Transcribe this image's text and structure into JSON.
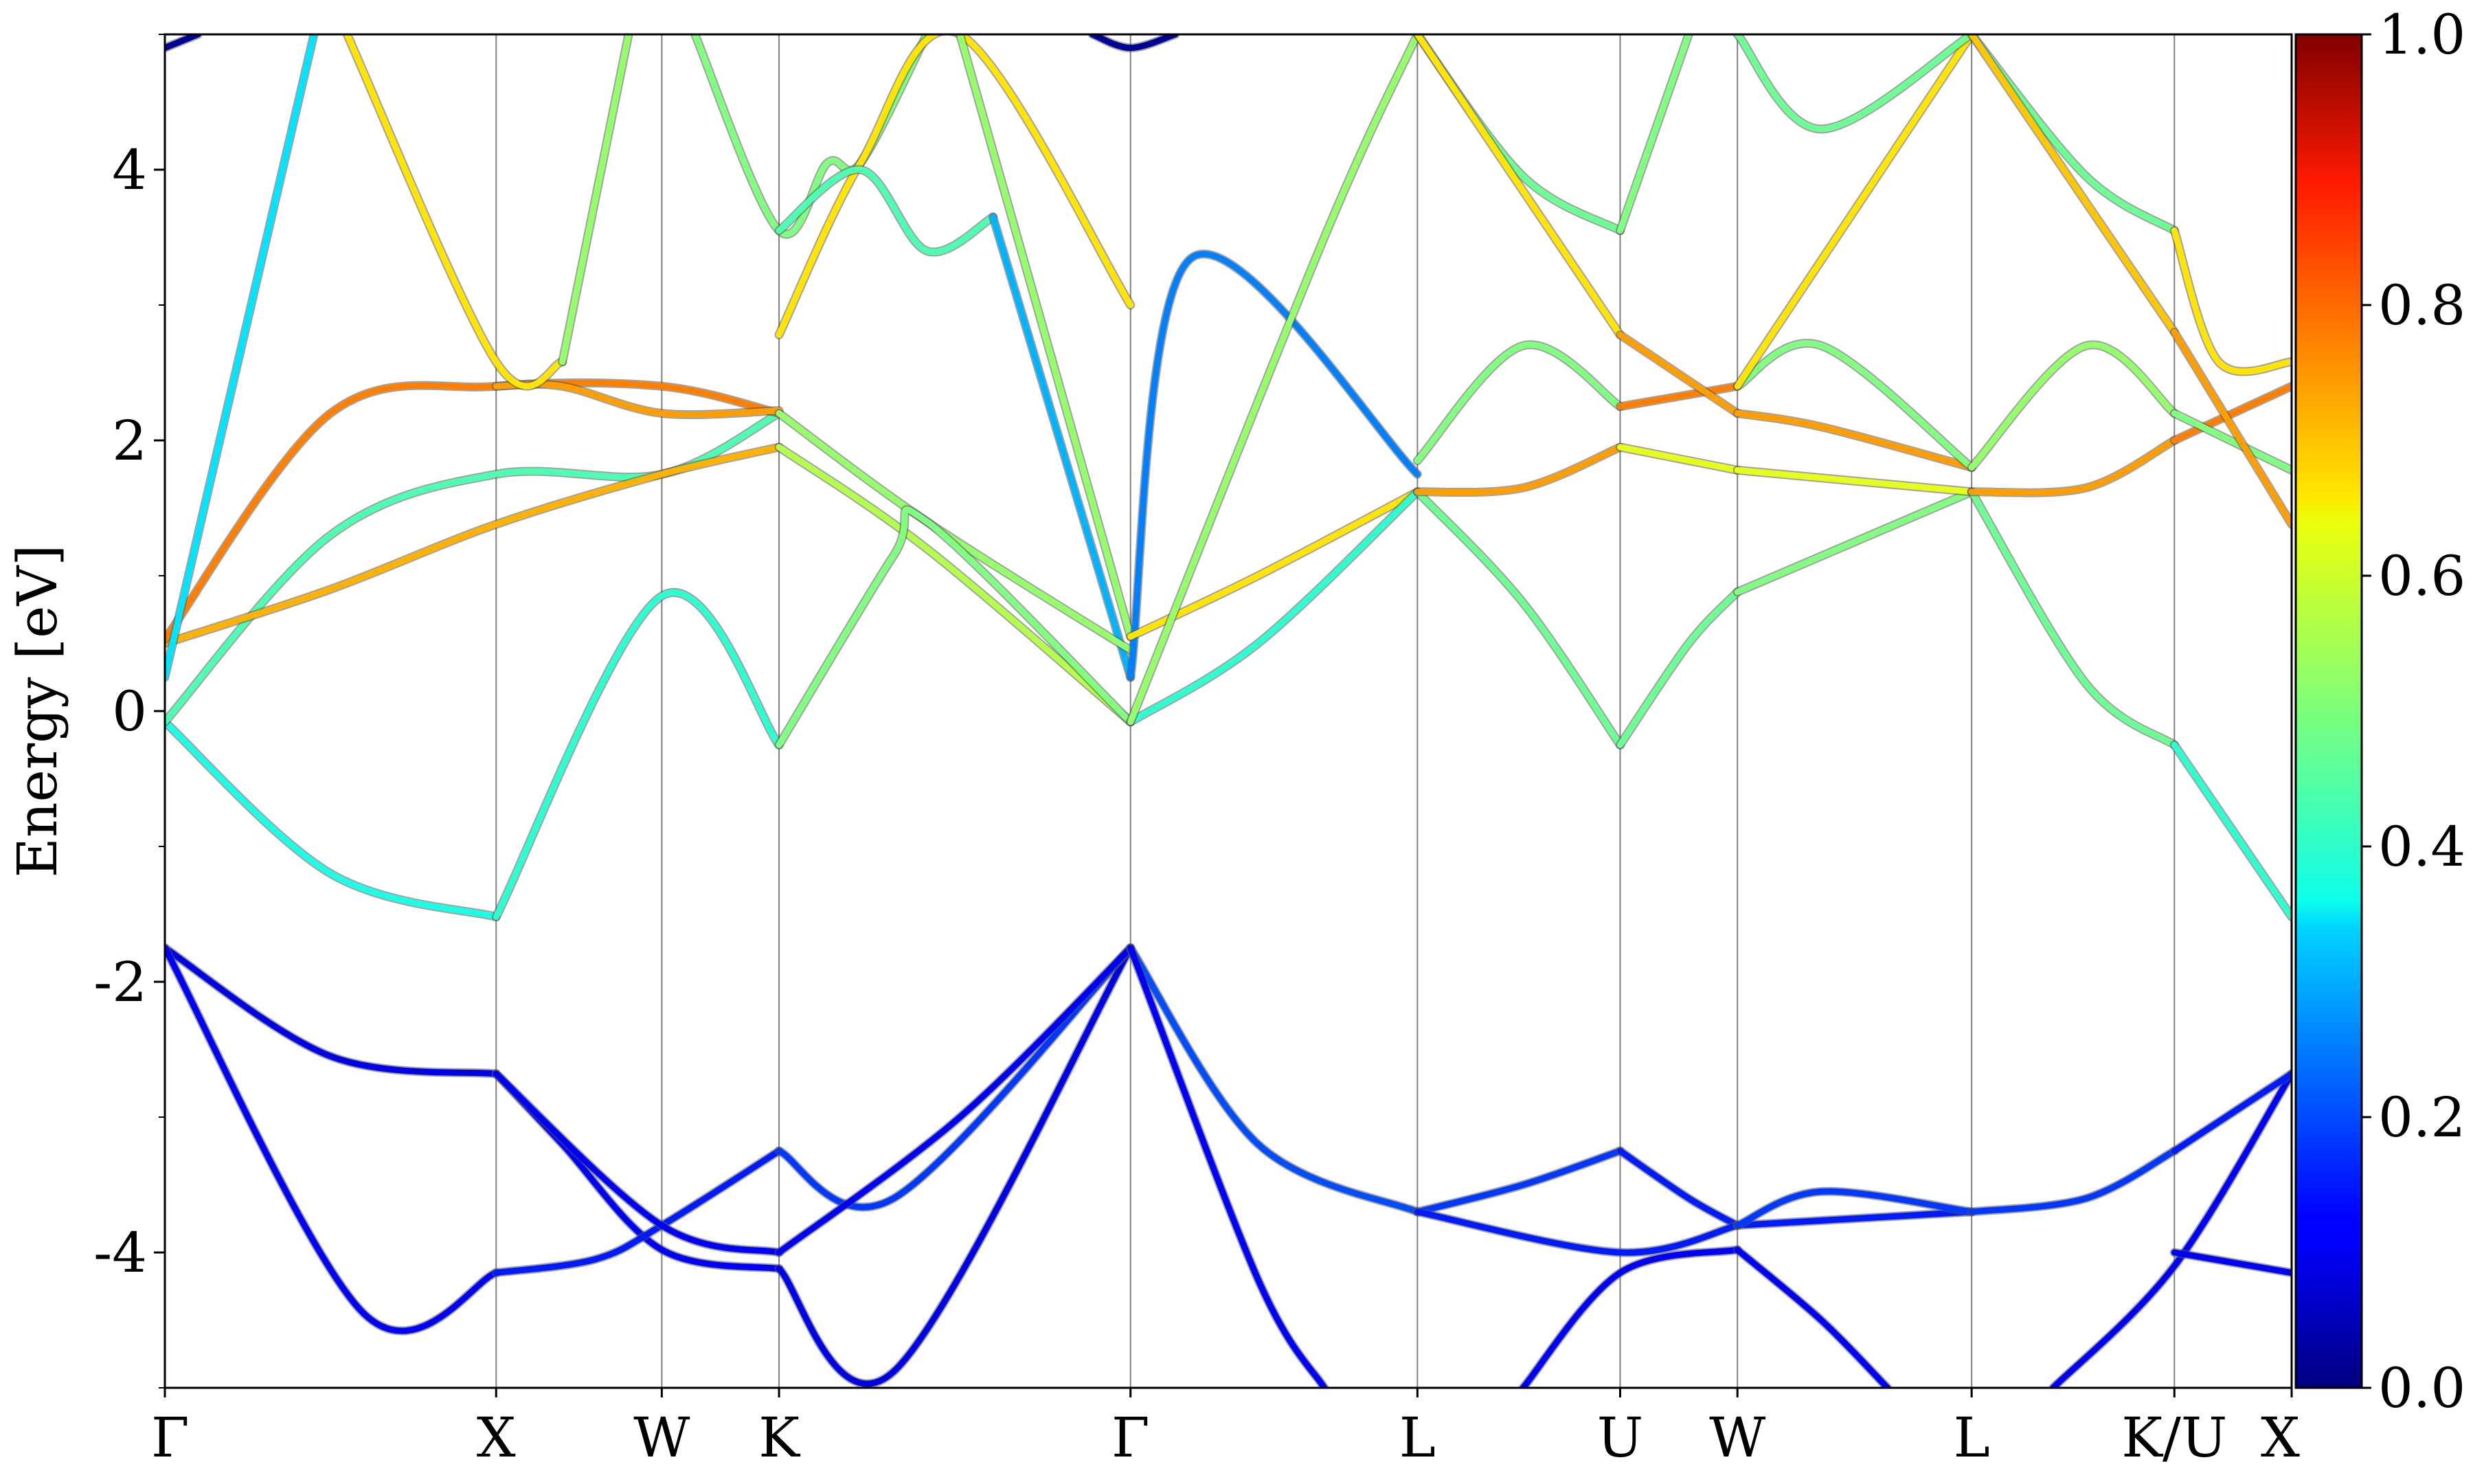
{
  "chart_data": {
    "type": "line",
    "title": "",
    "xlabel": "",
    "ylabel": "Energy [eV]",
    "ylim": [
      -5,
      5
    ],
    "y_ticks": [
      {
        "value": 4,
        "label": "4"
      },
      {
        "value": 2,
        "label": "2"
      },
      {
        "value": 0,
        "label": "0"
      },
      {
        "value": -2,
        "label": "-2"
      },
      {
        "value": -4,
        "label": "-4"
      }
    ],
    "k_points": [
      {
        "label": "Γ",
        "pos": 0
      },
      {
        "label": "X",
        "pos": 1.0
      },
      {
        "label": "W",
        "pos": 1.5
      },
      {
        "label": "K",
        "pos": 1.854
      },
      {
        "label": "Γ",
        "pos": 2.915
      },
      {
        "label": "L",
        "pos": 3.781
      },
      {
        "label": "U",
        "pos": 4.393
      },
      {
        "label": "W",
        "pos": 4.747
      },
      {
        "label": "L",
        "pos": 5.454
      },
      {
        "label": "K/U",
        "pos": 6.066
      },
      {
        "label": "X",
        "pos": 6.42
      }
    ],
    "colorbar": {
      "min": 0.0,
      "max": 1.0,
      "ticks": [
        {
          "value": 0.0,
          "label": "0.0"
        },
        {
          "value": 0.2,
          "label": "0.2"
        },
        {
          "value": 0.4,
          "label": "0.4"
        },
        {
          "value": 0.6,
          "label": "0.6"
        },
        {
          "value": 0.8,
          "label": "0.8"
        },
        {
          "value": 1.0,
          "label": "1.0"
        }
      ],
      "colormap": "jet"
    },
    "series": [
      {
        "x": [
          0,
          0.5,
          1.0
        ],
        "y": [
          -1.75,
          -2.55,
          -2.68
        ],
        "w": 0.1
      },
      {
        "x": [
          0,
          0.6,
          1.0
        ],
        "y": [
          -1.75,
          -4.45,
          -4.15
        ],
        "w": 0.12
      },
      {
        "x": [
          1.0,
          1.2,
          1.5,
          1.854
        ],
        "y": [
          -2.68,
          -3.2,
          -3.98,
          -4.12
        ],
        "w": 0.12
      },
      {
        "x": [
          1.0,
          1.3,
          1.5,
          1.854
        ],
        "y": [
          -4.15,
          -4.05,
          -3.8,
          -3.25
        ],
        "w": 0.15
      },
      {
        "x": [
          1.0,
          1.5,
          1.854
        ],
        "y": [
          -2.68,
          -3.8,
          -4.0
        ],
        "w": 0.12
      },
      {
        "x": [
          1.854,
          2.2,
          2.915
        ],
        "y": [
          -4.12,
          -4.88,
          -1.75
        ],
        "w": 0.1
      },
      {
        "x": [
          1.854,
          2.2,
          2.915
        ],
        "y": [
          -3.25,
          -3.6,
          -1.75
        ],
        "w": 0.18
      },
      {
        "x": [
          1.854,
          2.4,
          2.915
        ],
        "y": [
          -4.0,
          -3.0,
          -1.75
        ],
        "w": 0.12
      },
      {
        "x": [
          2.915,
          3.3,
          3.781
        ],
        "y": [
          -1.75,
          -3.2,
          -3.7
        ],
        "w": 0.2
      },
      {
        "x": [
          2.915,
          3.3,
          3.5
        ],
        "y": [
          -1.75,
          -4.2,
          -5.0
        ],
        "w": 0.12
      },
      {
        "x": [
          3.781,
          4.1,
          4.393
        ],
        "y": [
          -3.7,
          -3.5,
          -3.25
        ],
        "w": 0.18
      },
      {
        "x": [
          4.393,
          4.6,
          4.747
        ],
        "y": [
          -3.25,
          -3.6,
          -3.8
        ],
        "w": 0.15
      },
      {
        "x": [
          4.1,
          4.393,
          4.747
        ],
        "y": [
          -5.0,
          -4.15,
          -3.98
        ],
        "w": 0.12
      },
      {
        "x": [
          3.781,
          4.393,
          4.747
        ],
        "y": [
          -3.7,
          -4.0,
          -3.8
        ],
        "w": 0.15
      },
      {
        "x": [
          4.747,
          5.1,
          5.454
        ],
        "y": [
          -3.8,
          -3.75,
          -3.7
        ],
        "w": 0.15
      },
      {
        "x": [
          4.747,
          5.0,
          5.454
        ],
        "y": [
          -3.8,
          -3.55,
          -3.7
        ],
        "w": 0.18
      },
      {
        "x": [
          4.747,
          5.0,
          5.2
        ],
        "y": [
          -3.98,
          -4.5,
          -5.0
        ],
        "w": 0.12
      },
      {
        "x": [
          5.454,
          5.8,
          6.066
        ],
        "y": [
          -3.7,
          -3.6,
          -3.25
        ],
        "w": 0.18
      },
      {
        "x": [
          5.7,
          6.066,
          6.42
        ],
        "y": [
          -5.0,
          -4.1,
          -2.68
        ],
        "w": 0.12
      },
      {
        "x": [
          6.066,
          6.42
        ],
        "y": [
          -3.25,
          -2.68
        ],
        "w": 0.15
      },
      {
        "x": [
          6.066,
          6.42
        ],
        "y": [
          -4.0,
          -4.15
        ],
        "w": 0.12
      },
      {
        "x": [
          0,
          0.5,
          1.0
        ],
        "y": [
          -0.08,
          -1.2,
          -1.52
        ],
        "w": 0.4
      },
      {
        "x": [
          1.0,
          1.5,
          1.854
        ],
        "y": [
          -1.52,
          0.85,
          -0.25
        ],
        "w": 0.42
      },
      {
        "x": [
          0,
          0.5,
          1.0,
          1.5,
          1.854
        ],
        "y": [
          -0.08,
          1.3,
          1.75,
          1.75,
          2.2
        ],
        "w": 0.45
      },
      {
        "x": [
          0,
          0.5,
          1.0,
          1.5,
          1.854
        ],
        "y": [
          0.5,
          0.9,
          1.38,
          1.75,
          1.95
        ],
        "w": 0.7
      },
      {
        "x": [
          0,
          0.5,
          1.0,
          1.5,
          1.854
        ],
        "y": [
          0.53,
          2.2,
          2.4,
          2.4,
          2.2
        ],
        "w": 0.75
      },
      {
        "x": [
          1.0,
          1.2,
          1.5,
          1.854
        ],
        "y": [
          2.4,
          2.4,
          2.2,
          2.22
        ],
        "w": 0.72
      },
      {
        "x": [
          0,
          0.45
        ],
        "y": [
          0.25,
          5.0
        ],
        "w": 0.35
      },
      {
        "x": [
          0.55,
          1.0,
          1.2
        ],
        "y": [
          5.0,
          2.58,
          2.58
        ],
        "w": 0.65
      },
      {
        "x": [
          1.2,
          1.4
        ],
        "y": [
          2.58,
          5.0
        ],
        "w": 0.52
      },
      {
        "x": [
          1.6,
          1.854,
          2.0,
          2.1,
          2.3
        ],
        "y": [
          5.0,
          3.55,
          4.05,
          4.05,
          5.0
        ],
        "w": 0.5
      },
      {
        "x": [
          1.854,
          2.1,
          2.4,
          2.915
        ],
        "y": [
          2.78,
          4.05,
          5.0,
          3.0
        ],
        "w": 0.65
      },
      {
        "x": [
          1.854,
          2.1,
          2.3,
          2.5
        ],
        "y": [
          3.55,
          4.0,
          3.4,
          3.65
        ],
        "w": 0.45
      },
      {
        "x": [
          2.5,
          2.915
        ],
        "y": [
          3.65,
          0.25
        ],
        "w": 0.3
      },
      {
        "x": [
          2.4,
          2.915
        ],
        "y": [
          5.0,
          0.55
        ],
        "w": 0.52
      },
      {
        "x": [
          1.854,
          2.3,
          2.915
        ],
        "y": [
          1.95,
          1.2,
          -0.08
        ],
        "w": 0.55
      },
      {
        "x": [
          1.854,
          2.3,
          2.915
        ],
        "y": [
          2.2,
          1.4,
          0.45
        ],
        "w": 0.52
      },
      {
        "x": [
          1.854,
          2.2,
          2.3,
          2.915
        ],
        "y": [
          -0.25,
          1.15,
          1.4,
          -0.08
        ],
        "w": 0.5
      },
      {
        "x": [
          2.915,
          3.1,
          3.781
        ],
        "y": [
          0.25,
          3.35,
          1.75
        ],
        "w": 0.25
      },
      {
        "x": [
          2.915,
          3.3,
          3.781
        ],
        "y": [
          0.55,
          1.0,
          1.62
        ],
        "w": 0.65
      },
      {
        "x": [
          2.915,
          3.3,
          3.781
        ],
        "y": [
          -0.08,
          0.5,
          1.62
        ],
        "w": 0.42
      },
      {
        "x": [
          2.915,
          3.5,
          3.781
        ],
        "y": [
          -0.08,
          3.5,
          5.0
        ],
        "w": 0.52
      },
      {
        "x": [
          3.781,
          4.1,
          4.393
        ],
        "y": [
          1.62,
          0.8,
          -0.25
        ],
        "w": 0.48
      },
      {
        "x": [
          3.781,
          4.1,
          4.393
        ],
        "y": [
          1.62,
          1.65,
          1.95
        ],
        "w": 0.72
      },
      {
        "x": [
          3.781,
          4.1,
          4.393
        ],
        "y": [
          1.85,
          2.7,
          2.25
        ],
        "w": 0.5
      },
      {
        "x": [
          3.781,
          4.1,
          4.393
        ],
        "y": [
          5.0,
          3.95,
          3.55
        ],
        "w": 0.48
      },
      {
        "x": [
          3.781,
          4.393
        ],
        "y": [
          5.0,
          2.78
        ],
        "w": 0.65
      },
      {
        "x": [
          4.393,
          4.6,
          4.747
        ],
        "y": [
          -0.25,
          0.5,
          0.88
        ],
        "w": 0.48
      },
      {
        "x": [
          4.393,
          4.747
        ],
        "y": [
          1.95,
          1.78
        ],
        "w": 0.6
      },
      {
        "x": [
          4.393,
          4.747
        ],
        "y": [
          2.25,
          2.4
        ],
        "w": 0.75
      },
      {
        "x": [
          4.393,
          4.747
        ],
        "y": [
          2.78,
          2.2
        ],
        "w": 0.72
      },
      {
        "x": [
          4.393,
          4.6
        ],
        "y": [
          3.55,
          5.0
        ],
        "w": 0.5
      },
      {
        "x": [
          4.747,
          5.454
        ],
        "y": [
          0.88,
          1.62
        ],
        "w": 0.5
      },
      {
        "x": [
          4.747,
          5.454
        ],
        "y": [
          1.78,
          1.62
        ],
        "w": 0.6
      },
      {
        "x": [
          4.747,
          5.0,
          5.454
        ],
        "y": [
          2.2,
          2.1,
          1.8
        ],
        "w": 0.72
      },
      {
        "x": [
          4.747,
          5.0,
          5.454
        ],
        "y": [
          2.4,
          2.7,
          1.8
        ],
        "w": 0.5
      },
      {
        "x": [
          4.747,
          5.454
        ],
        "y": [
          2.4,
          5.0
        ],
        "w": 0.65
      },
      {
        "x": [
          4.747,
          5.0,
          5.454
        ],
        "y": [
          5.0,
          4.3,
          5.0
        ],
        "w": 0.48
      },
      {
        "x": [
          5.454,
          5.8,
          6.066
        ],
        "y": [
          1.62,
          0.2,
          -0.25
        ],
        "w": 0.48
      },
      {
        "x": [
          5.454,
          5.8,
          6.066
        ],
        "y": [
          1.62,
          1.65,
          2.0
        ],
        "w": 0.72
      },
      {
        "x": [
          5.454,
          5.8,
          6.066
        ],
        "y": [
          1.8,
          2.7,
          2.2
        ],
        "w": 0.52
      },
      {
        "x": [
          5.454,
          5.8,
          6.066
        ],
        "y": [
          5.0,
          3.95,
          3.55
        ],
        "w": 0.48
      },
      {
        "x": [
          5.454,
          6.066
        ],
        "y": [
          5.0,
          2.8
        ],
        "w": 0.68
      },
      {
        "x": [
          6.066,
          6.42
        ],
        "y": [
          -0.25,
          -1.52
        ],
        "w": 0.42
      },
      {
        "x": [
          6.066,
          6.42
        ],
        "y": [
          2.0,
          2.4
        ],
        "w": 0.75
      },
      {
        "x": [
          6.066,
          6.42
        ],
        "y": [
          2.2,
          1.78
        ],
        "w": 0.5
      },
      {
        "x": [
          6.066,
          6.42
        ],
        "y": [
          2.8,
          1.38
        ],
        "w": 0.72
      },
      {
        "x": [
          6.066,
          6.2,
          6.42
        ],
        "y": [
          3.55,
          2.58,
          2.58
        ],
        "w": 0.65
      },
      {
        "x": [
          0,
          0.1
        ],
        "y": [
          4.9,
          5.0
        ],
        "w": 0.02
      },
      {
        "x": [
          2.8,
          2.915,
          3.05
        ],
        "y": [
          5.0,
          4.9,
          5.0
        ],
        "w": 0.02
      }
    ]
  }
}
